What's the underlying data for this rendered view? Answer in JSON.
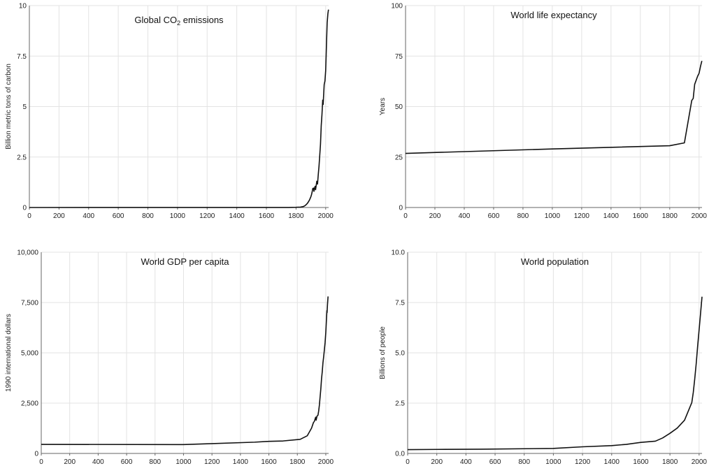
{
  "chart_data": [
    {
      "type": "line",
      "title": "Global CO",
      "title_subscript": "2",
      "title_suffix": " emissions",
      "ylabel": "Billion metric tons of carbon",
      "xlim": [
        0,
        2020
      ],
      "ylim": [
        0,
        10
      ],
      "xticks": [
        0,
        200,
        400,
        600,
        800,
        1000,
        1200,
        1400,
        1600,
        1800,
        2000
      ],
      "xtick_labels": [
        "0",
        "200",
        "400",
        "600",
        "800",
        "1000",
        "1200",
        "1400",
        "1600",
        "1800",
        "2000"
      ],
      "yticks": [
        0,
        2.5,
        5,
        7.5,
        10
      ],
      "ytick_labels": [
        "0",
        "2.5",
        "5",
        "7.5",
        "10"
      ],
      "grid": true,
      "series": [
        {
          "x": [
            0,
            1750,
            1800,
            1830,
            1850,
            1860,
            1870,
            1880,
            1890,
            1900,
            1905,
            1910,
            1913,
            1918,
            1921,
            1925,
            1929,
            1932,
            1937,
            1940,
            1945,
            1950,
            1955,
            1960,
            1965,
            1970,
            1975,
            1980,
            1983,
            1990,
            1995,
            2000,
            2005,
            2010,
            2015,
            2019
          ],
          "y": [
            0,
            0.003,
            0.01,
            0.02,
            0.05,
            0.09,
            0.15,
            0.24,
            0.36,
            0.53,
            0.65,
            0.82,
            0.94,
            0.96,
            0.8,
            0.97,
            1.05,
            0.88,
            1.14,
            1.3,
            1.16,
            1.63,
            2.04,
            2.58,
            3.13,
            4.05,
            4.61,
            5.32,
            5.1,
            6.09,
            6.26,
            6.77,
            7.97,
            9.14,
            9.6,
            9.8
          ]
        }
      ]
    },
    {
      "type": "line",
      "title": "World life expectancy",
      "ylabel": "Years",
      "xlim": [
        0,
        2020
      ],
      "ylim": [
        0,
        100
      ],
      "xticks": [
        0,
        200,
        400,
        600,
        800,
        1000,
        1200,
        1400,
        1600,
        1800,
        2000
      ],
      "xtick_labels": [
        "0",
        "200",
        "400",
        "600",
        "800",
        "1000",
        "1200",
        "1400",
        "1600",
        "1800",
        "2000"
      ],
      "yticks": [
        0,
        25,
        50,
        75,
        100
      ],
      "ytick_labels": [
        "0",
        "25",
        "50",
        "75",
        "100"
      ],
      "grid": true,
      "series": [
        {
          "x": [
            0,
            1000,
            1800,
            1900,
            1950,
            1960,
            1970,
            1980,
            1990,
            2000,
            2010,
            2019
          ],
          "y": [
            26.8,
            29,
            30.6,
            32,
            53,
            54,
            61,
            63,
            65,
            66.5,
            70,
            72.6
          ]
        }
      ]
    },
    {
      "type": "line",
      "title": "World GDP per capita",
      "ylabel": "1990 international dollars",
      "xlim": [
        0,
        2020
      ],
      "ylim": [
        0,
        10000
      ],
      "xticks": [
        0,
        200,
        400,
        600,
        800,
        1000,
        1200,
        1400,
        1600,
        1800,
        2000
      ],
      "xtick_labels": [
        "0",
        "200",
        "400",
        "600",
        "800",
        "1000",
        "1200",
        "1400",
        "1600",
        "1800",
        "2000"
      ],
      "yticks": [
        0,
        2500,
        5000,
        7500,
        10000
      ],
      "ytick_labels": [
        "0",
        "2,500",
        "5,000",
        "7,500",
        "10,000"
      ],
      "grid": true,
      "series": [
        {
          "x": [
            0,
            1000,
            1500,
            1600,
            1700,
            1820,
            1870,
            1900,
            1913,
            1920,
            1929,
            1932,
            1938,
            1945,
            1950,
            1955,
            1960,
            1965,
            1970,
            1975,
            1980,
            1985,
            1990,
            1995,
            2000,
            2005,
            2008,
            2009,
            2012,
            2015,
            2016
          ],
          "y": [
            450,
            440,
            560,
            600,
            620,
            700,
            880,
            1260,
            1530,
            1600,
            1800,
            1650,
            1850,
            1900,
            2110,
            2400,
            2800,
            3200,
            3700,
            4050,
            4500,
            4800,
            5150,
            5500,
            6000,
            6700,
            7100,
            7000,
            7400,
            7700,
            7800
          ]
        }
      ]
    },
    {
      "type": "line",
      "title": "World population",
      "ylabel": "Billions of people",
      "xlim": [
        0,
        2020
      ],
      "ylim": [
        0,
        10
      ],
      "xticks": [
        0,
        200,
        400,
        600,
        800,
        1000,
        1200,
        1400,
        1600,
        1800,
        2000
      ],
      "xtick_labels": [
        "0",
        "200",
        "400",
        "600",
        "800",
        "1000",
        "1200",
        "1400",
        "1600",
        "1800",
        "2000"
      ],
      "yticks": [
        0,
        2.5,
        5,
        7.5,
        10
      ],
      "ytick_labels": [
        "0.0",
        "2.5",
        "5.0",
        "7.5",
        "10.0"
      ],
      "grid": true,
      "series": [
        {
          "x": [
            0,
            200,
            500,
            1000,
            1200,
            1400,
            1500,
            1600,
            1700,
            1750,
            1800,
            1850,
            1900,
            1950,
            1960,
            1970,
            1980,
            1990,
            2000,
            2010,
            2020
          ],
          "y": [
            0.19,
            0.2,
            0.21,
            0.25,
            0.33,
            0.39,
            0.45,
            0.55,
            0.61,
            0.77,
            1.0,
            1.26,
            1.65,
            2.53,
            3.03,
            3.7,
            4.45,
            5.33,
            6.14,
            6.96,
            7.79
          ]
        }
      ]
    }
  ]
}
